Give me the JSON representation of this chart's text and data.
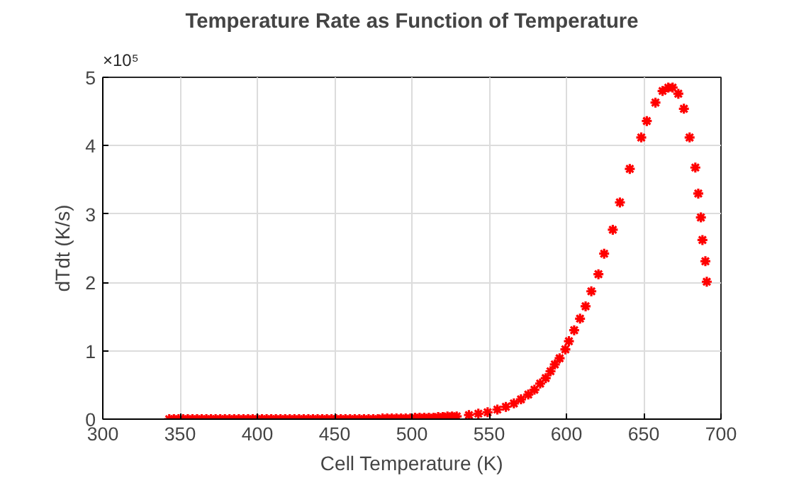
{
  "chart_data": {
    "type": "scatter",
    "title": "Temperature Rate as Function of Temperature",
    "xlabel": "Cell Temperature (K)",
    "ylabel": "dTdt (K/s)",
    "annotations": [
      "×10⁵"
    ],
    "xlim": [
      300,
      700
    ],
    "ylim": [
      0,
      5
    ],
    "xticks": [
      300,
      350,
      400,
      450,
      500,
      550,
      600,
      650,
      700
    ],
    "yticks": [
      0,
      1,
      2,
      3,
      4,
      5
    ],
    "grid": true,
    "marker": "cross",
    "series": [
      {
        "color": "#ff0000",
        "x": [
          343,
          346,
          349,
          352,
          355,
          358,
          361,
          364,
          367,
          370,
          373,
          376,
          379,
          382,
          385,
          388,
          391,
          394,
          397,
          400,
          403,
          406,
          409,
          412,
          415,
          418,
          421,
          424,
          427,
          430,
          433,
          436,
          439,
          442,
          445,
          448,
          451,
          454,
          457,
          460,
          463,
          466,
          469,
          472,
          475,
          478,
          481,
          484,
          487,
          490,
          493,
          496,
          499,
          502,
          505,
          508,
          511,
          514,
          517,
          520,
          523,
          526,
          529,
          536.9,
          543,
          549,
          555.3,
          560.8,
          566,
          570.6,
          575.3,
          579.3,
          583,
          586.6,
          589.7,
          592.5,
          595.6,
          599.3,
          601.6,
          605,
          608.8,
          612.4,
          616.1,
          620.7,
          624.4,
          630,
          634.6,
          641,
          648.4,
          652,
          657.6,
          662.2,
          665.9,
          668.7,
          672.4,
          676,
          679.7,
          683.4,
          685.3,
          687,
          688,
          689.9,
          690.8
        ],
        "values": [
          0,
          0,
          0,
          0,
          0,
          0,
          0,
          0,
          0,
          0,
          0,
          0,
          0,
          0,
          0,
          0,
          0,
          0,
          0,
          0,
          0,
          0,
          0,
          0,
          0,
          0,
          0,
          0,
          0,
          0,
          0,
          0,
          0,
          0,
          0,
          0,
          0,
          0,
          0,
          0,
          0,
          0,
          0,
          0,
          0,
          0,
          0.01,
          0.01,
          0.01,
          0.01,
          0.01,
          0.01,
          0.01,
          0.02,
          0.02,
          0.02,
          0.02,
          0.02,
          0.03,
          0.03,
          0.04,
          0.04,
          0.04,
          0.06,
          0.08,
          0.1,
          0.14,
          0.18,
          0.23,
          0.29,
          0.36,
          0.43,
          0.52,
          0.6,
          0.7,
          0.8,
          0.89,
          1.02,
          1.14,
          1.3,
          1.47,
          1.65,
          1.87,
          2.12,
          2.42,
          2.77,
          3.17,
          3.66,
          4.12,
          4.36,
          4.63,
          4.8,
          4.85,
          4.85,
          4.76,
          4.54,
          4.12,
          3.68,
          3.3,
          2.95,
          2.62,
          2.31,
          2.01
        ]
      }
    ]
  }
}
